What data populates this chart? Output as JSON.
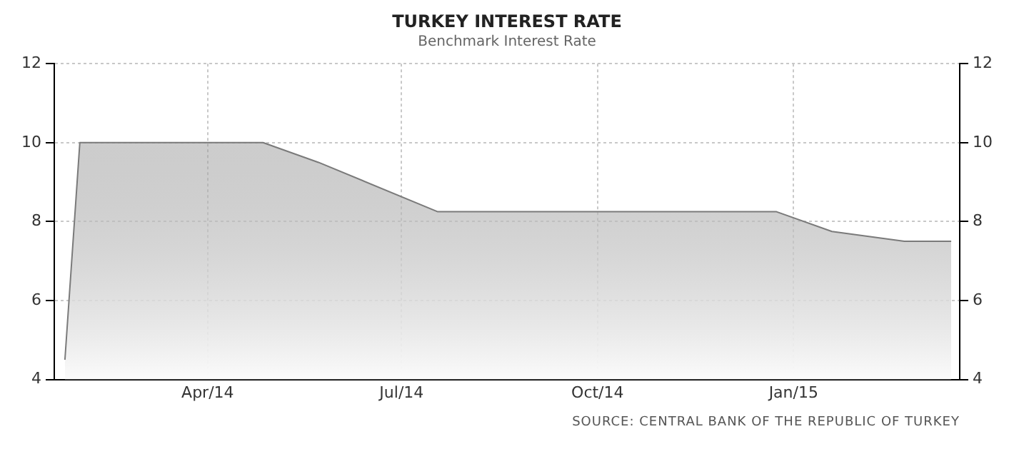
{
  "chart_data": {
    "type": "area",
    "title": "TURKEY INTEREST RATE",
    "subtitle": "Benchmark Interest Rate",
    "x": [
      "2014-01-24",
      "2014-01-31",
      "2014-04-27",
      "2014-05-23",
      "2014-07-18",
      "2014-12-24",
      "2015-01-19",
      "2015-02-22",
      "2015-03-16"
    ],
    "series": [
      {
        "color": "#7a7a7a",
        "values": [
          4.5,
          10,
          10,
          9.5,
          8.25,
          8.25,
          7.75,
          7.5,
          7.5
        ]
      }
    ],
    "xlim": [
      "2014-01-19",
      "2015-03-20"
    ],
    "xticks": [
      {
        "value": "2014-04-01",
        "label": "Apr/14"
      },
      {
        "value": "2014-07-01",
        "label": "Jul/14"
      },
      {
        "value": "2014-10-01",
        "label": "Oct/14"
      },
      {
        "value": "2015-01-01",
        "label": "Jan/15"
      }
    ],
    "ylim": [
      4,
      12
    ],
    "yticks": [
      4,
      6,
      8,
      10,
      12
    ],
    "y2lim": [
      4,
      12
    ],
    "y2ticks": [
      4,
      6,
      8,
      10,
      12
    ],
    "grid": true,
    "legend": false,
    "marker": "none",
    "line_style": "solid",
    "annotations": [
      "SOURCE: CENTRAL BANK OF THE REPUBLIC OF TURKEY"
    ]
  }
}
